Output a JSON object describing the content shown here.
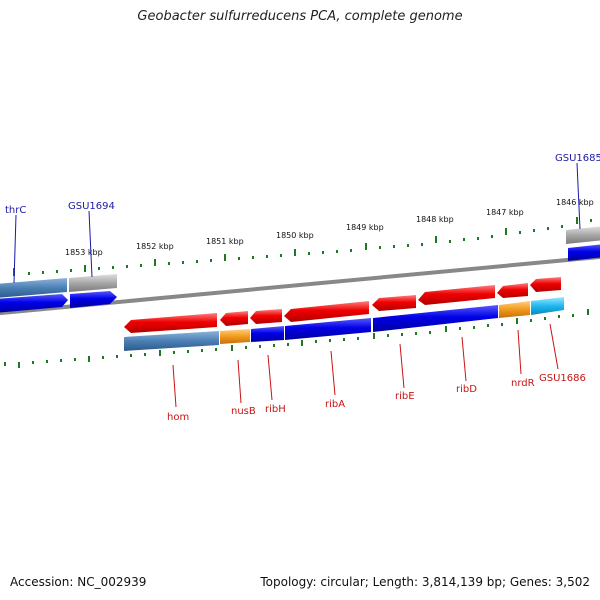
{
  "title": "Geobacter sulfurreducens PCA, complete genome",
  "footer": {
    "accession": "Accession: NC_002939",
    "summary": "Topology: circular; Length: 3,814,139 bp; Genes: 3,502"
  },
  "kbp_labels": [
    "1853 kbp",
    "1852 kbp",
    "1851 kbp",
    "1850 kbp",
    "1849 kbp",
    "1848 kbp",
    "1847 kbp",
    "1846 kbp"
  ],
  "upper_gene_labels": [
    "thrC",
    "GSU1694",
    "GSU1685"
  ],
  "lower_gene_labels": [
    "hom",
    "nusB",
    "ribH",
    "ribA",
    "ribE",
    "ribD",
    "nrdR",
    "GSU1686"
  ],
  "colors": {
    "forward_gene": "#0000e6",
    "reverse_gene": "#ee0000",
    "steelblue_gene": "#4a7fb5",
    "gray_gene": "#a8a8a8",
    "orange_gene": "#f39a1b",
    "cyan_gene": "#1fb8f0",
    "tick": "#1e7a1e",
    "backbone": "#888888"
  }
}
